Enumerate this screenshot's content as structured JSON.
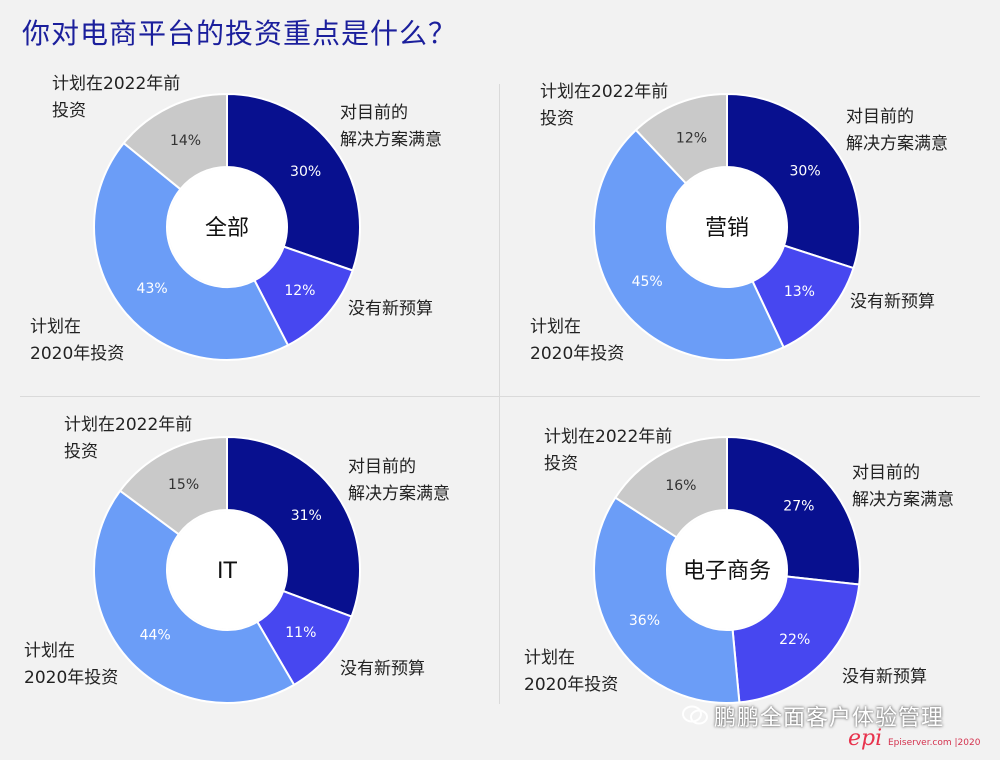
{
  "title": "你对电商平台的投资重点是什么？",
  "labels": {
    "satisfied_l1": "对目前的",
    "satisfied_l2": "解决方案满意",
    "no_budget": "没有新预算",
    "plan2020_l1": "计划在",
    "plan2020_l2": "2020年投资",
    "plan2022_l1": "计划在2022年前",
    "plan2022_l2": "投资"
  },
  "footer": {
    "watermark": "鹏鹏全面客户体验管理",
    "logo": "epi",
    "source": "Episerver.com  |2020"
  },
  "colors": {
    "satisfied": "#08108f",
    "no_budget": "#4747f0",
    "plan2020": "#6b9df7",
    "plan2022": "#c9c9c9",
    "title": "#1b1f9c"
  },
  "chart_data": [
    {
      "type": "pie",
      "center_label": "全部",
      "categories": [
        "对目前的解决方案满意",
        "没有新预算",
        "计划在2020年投资",
        "计划在2022年前投资"
      ],
      "values": [
        30,
        12,
        43,
        14
      ],
      "value_labels": [
        "30%",
        "12%",
        "43%",
        "14%"
      ]
    },
    {
      "type": "pie",
      "center_label": "营销",
      "categories": [
        "对目前的解决方案满意",
        "没有新预算",
        "计划在2020年投资",
        "计划在2022年前投资"
      ],
      "values": [
        30,
        13,
        45,
        12
      ],
      "value_labels": [
        "30%",
        "13%",
        "45%",
        "12%"
      ]
    },
    {
      "type": "pie",
      "center_label": "IT",
      "categories": [
        "对目前的解决方案满意",
        "没有新预算",
        "计划在2020年投资",
        "计划在2022年前投资"
      ],
      "values": [
        31,
        11,
        44,
        15
      ],
      "value_labels": [
        "31%",
        "11%",
        "44%",
        "15%"
      ]
    },
    {
      "type": "pie",
      "center_label": "电子商务",
      "categories": [
        "对目前的解决方案满意",
        "没有新预算",
        "计划在2020年投资",
        "计划在2022年前投资"
      ],
      "values": [
        27,
        22,
        36,
        16
      ],
      "value_labels": [
        "27%",
        "22%",
        "36%",
        "16%"
      ]
    }
  ]
}
